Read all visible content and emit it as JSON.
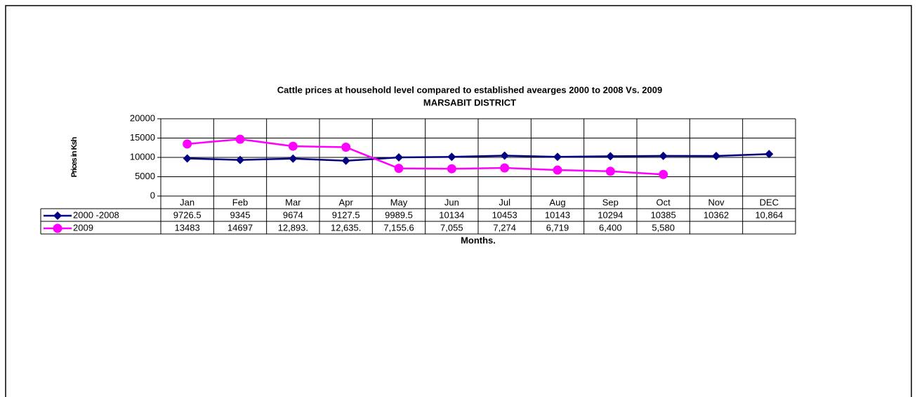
{
  "chart_data": {
    "type": "line",
    "title": "Cattle prices at household level compared to established avearges 2000 to 2008 Vs. 2009",
    "subtitle": "MARSABIT DISTRICT",
    "y_label": "Prices in Ksh",
    "x_label": "Months.",
    "categories": [
      "Jan",
      "Feb",
      "Mar",
      "Apr",
      "May",
      "Jun",
      "Jul",
      "Aug",
      "Sep",
      "Oct",
      "Nov",
      "DEC"
    ],
    "series": [
      {
        "name": "2000 -2008",
        "color": "#000080",
        "marker": "diamond",
        "values": [
          9726.5,
          9345,
          9674,
          9127.5,
          9989.5,
          10134,
          10453,
          10143,
          10294,
          10385,
          10362,
          10864
        ],
        "value_labels": [
          "9726.5",
          "9345",
          "9674",
          "9127.5",
          "9989.5",
          "10134",
          "10453",
          "10143",
          "10294",
          "10385",
          "10362",
          "10,864"
        ]
      },
      {
        "name": "2009",
        "color": "#ff00ff",
        "marker": "circle",
        "values": [
          13483,
          14697,
          12893,
          12635,
          7155.6,
          7055,
          7274,
          6719,
          6400,
          5580,
          null,
          null
        ],
        "value_labels": [
          "13483",
          "14697",
          "12,893.",
          "12,635.",
          "7,155.6",
          "7,055",
          "7,274",
          "6,719",
          "6,400",
          "5,580",
          null,
          null
        ]
      }
    ],
    "ylim": [
      0,
      20000
    ],
    "yticks": [
      0,
      5000,
      10000,
      15000,
      20000
    ],
    "grid": true
  }
}
